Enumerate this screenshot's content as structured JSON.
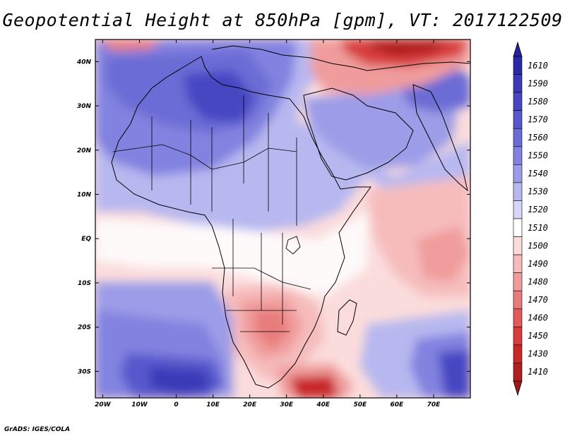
{
  "title": "Geopotential Height at 850hPa [gpm], VT: 2017122509",
  "credit": "GrADS: IGES/COLA",
  "map": {
    "variable": "Geopotential Height",
    "level": "850hPa",
    "units": "gpm",
    "valid_time": "2017122509",
    "lon_range": [
      -22,
      80
    ],
    "lat_range": [
      -36,
      45
    ],
    "lon_ticks": [
      "20W",
      "10W",
      "0",
      "10E",
      "20E",
      "30E",
      "40E",
      "50E",
      "60E",
      "70E"
    ],
    "lat_ticks": [
      "40N",
      "30N",
      "20N",
      "10N",
      "EQ",
      "10S",
      "20S",
      "30S"
    ]
  },
  "colorbar": {
    "levels": [
      {
        "label": "1610",
        "color": "#2a2aa8"
      },
      {
        "label": "1590",
        "color": "#3a3ab8"
      },
      {
        "label": "1580",
        "color": "#4747c2"
      },
      {
        "label": "1570",
        "color": "#5858cc"
      },
      {
        "label": "1560",
        "color": "#6c6cd6"
      },
      {
        "label": "1550",
        "color": "#8282e0"
      },
      {
        "label": "1540",
        "color": "#9c9ce8"
      },
      {
        "label": "1530",
        "color": "#b8b8f0"
      },
      {
        "label": "1520",
        "color": "#d6d6f8"
      },
      {
        "label": "1510",
        "color": "#ffffff"
      },
      {
        "label": "1500",
        "color": "#fbdcdc"
      },
      {
        "label": "1490",
        "color": "#f6bcbc"
      },
      {
        "label": "1480",
        "color": "#f09c9c"
      },
      {
        "label": "1470",
        "color": "#e87c7c"
      },
      {
        "label": "1460",
        "color": "#e05a5a"
      },
      {
        "label": "1450",
        "color": "#d83c3c"
      },
      {
        "label": "1430",
        "color": "#c82828"
      },
      {
        "label": "1410",
        "color": "#b01e1e"
      }
    ],
    "max_arrow_color": "#2222a0",
    "min_arrow_color": "#a01818"
  }
}
